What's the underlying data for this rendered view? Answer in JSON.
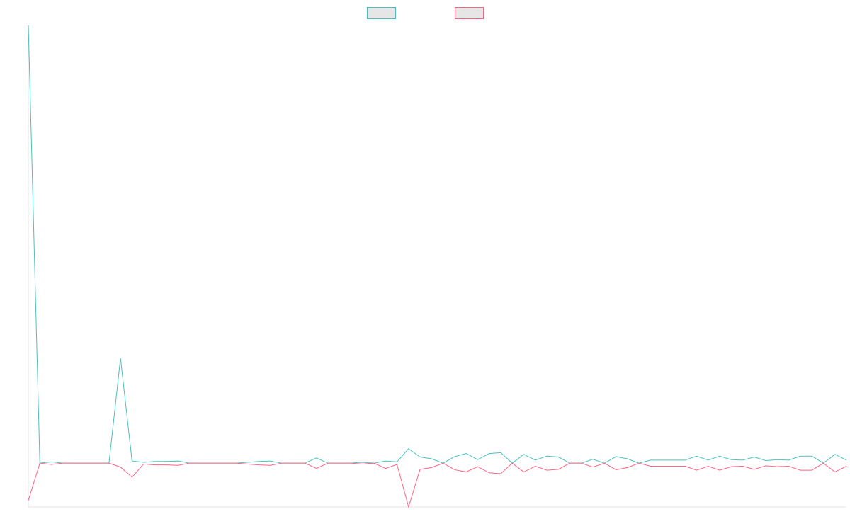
{
  "chart_data": {
    "type": "line",
    "title": "",
    "xlabel": "",
    "ylabel": "",
    "grid": false,
    "legend_placement": "top-center",
    "xlim": [
      0,
      71
    ],
    "ylim": [
      -10,
      100
    ],
    "x": [
      0,
      1,
      2,
      3,
      4,
      5,
      6,
      7,
      8,
      9,
      10,
      11,
      12,
      13,
      14,
      15,
      16,
      17,
      18,
      19,
      20,
      21,
      22,
      23,
      24,
      25,
      26,
      27,
      28,
      29,
      30,
      31,
      32,
      33,
      34,
      35,
      36,
      37,
      38,
      39,
      40,
      41,
      42,
      43,
      44,
      45,
      46,
      47,
      48,
      49,
      50,
      51,
      52,
      53,
      54,
      55,
      56,
      57,
      58,
      59,
      60,
      61,
      62,
      63,
      64,
      65,
      66,
      67,
      68,
      69,
      70,
      71
    ],
    "series": [
      {
        "color": "#4bc0c0",
        "fill": "#e6e6e6",
        "values": [
          100,
          0.0,
          0.3,
          0.0,
          0.0,
          0.0,
          0.0,
          0.0,
          24.0,
          0.5,
          0.2,
          0.4,
          0.4,
          0.5,
          0.0,
          0.0,
          0.0,
          0.0,
          0.0,
          0.2,
          0.4,
          0.5,
          0.0,
          0.0,
          0.0,
          1.2,
          0.0,
          0.0,
          0.0,
          0.2,
          0.0,
          0.5,
          0.3,
          3.3,
          1.4,
          1.0,
          0.0,
          1.5,
          2.2,
          0.8,
          2.2,
          2.4,
          0.0,
          2.0,
          0.7,
          1.6,
          1.4,
          0.0,
          0.0,
          0.9,
          0.0,
          1.5,
          1.0,
          0.0,
          0.7,
          0.7,
          0.7,
          0.7,
          1.6,
          0.7,
          1.6,
          0.8,
          0.7,
          1.4,
          0.6,
          0.8,
          0.7,
          1.6,
          1.6,
          0.0,
          2.0,
          0.7
        ]
      },
      {
        "color": "#ff6384",
        "fill": "#e6e6e6",
        "values": [
          -8.5,
          0.0,
          -0.3,
          0.0,
          0.0,
          0.0,
          0.0,
          0.0,
          -0.9,
          -3.2,
          -0.2,
          -0.4,
          -0.4,
          -0.5,
          0.0,
          0.0,
          0.0,
          0.0,
          0.0,
          -0.2,
          -0.4,
          -0.5,
          0.0,
          0.0,
          0.0,
          -1.2,
          0.0,
          0.0,
          0.0,
          -0.2,
          0.0,
          -1.2,
          -0.3,
          -10.0,
          -1.4,
          -1.0,
          0.0,
          -1.5,
          -2.0,
          -0.8,
          -2.2,
          -2.4,
          0.0,
          -2.0,
          -0.7,
          -1.6,
          -1.4,
          0.0,
          0.0,
          -0.9,
          0.0,
          -1.5,
          -1.0,
          0.0,
          -0.7,
          -0.7,
          -0.7,
          -0.7,
          -1.6,
          -0.7,
          -1.6,
          -0.8,
          -0.7,
          -1.4,
          -0.6,
          -0.8,
          -0.7,
          -1.6,
          -1.6,
          0.0,
          -2.0,
          -0.7
        ]
      }
    ]
  }
}
